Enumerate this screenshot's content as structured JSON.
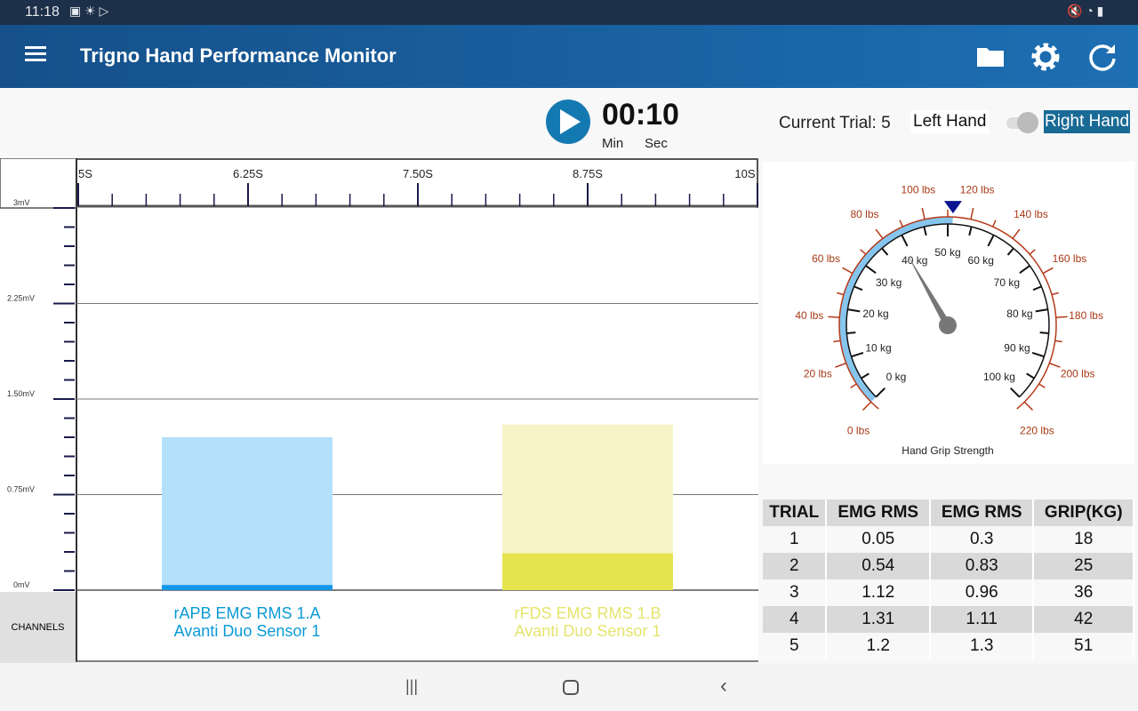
{
  "status": {
    "time": "11:18"
  },
  "header": {
    "title": "Trigno Hand Performance Monitor",
    "icons": [
      "menu-icon",
      "folder-icon",
      "gear-icon",
      "refresh-icon"
    ]
  },
  "timer": {
    "value": "00:10",
    "min_label": "Min",
    "sec_label": "Sec"
  },
  "trial": {
    "current_label": "Current Trial: 5",
    "left_hand": "Left Hand",
    "right_hand": "Right Hand",
    "selected": "Right Hand"
  },
  "chart_data": {
    "type": "bar",
    "x_ticks": [
      "5S",
      "6.25S",
      "7.50S",
      "8.75S",
      "10S"
    ],
    "y_ticks": [
      "3mV",
      "2.25mV",
      "1.50mV",
      "0.75mV",
      "0mV"
    ],
    "ylim": [
      0,
      3
    ],
    "channels_label": "CHANNELS",
    "series": [
      {
        "name": "rAPB EMG RMS 1.A",
        "sensor": "Avanti Duo Sensor 1",
        "peak": 1.2,
        "current": 0.04,
        "color": "#0a9ad6",
        "peak_color": "#b3e0fb",
        "cur_color": "#1296e8"
      },
      {
        "name": "rFDS EMG RMS 1.B",
        "sensor": "Avanti Duo Sensor 1",
        "peak": 1.3,
        "current": 0.29,
        "color": "#e6e46c",
        "peak_color": "#f6f4c8",
        "cur_color": "#e5e44f"
      }
    ]
  },
  "gauge": {
    "title": "Hand Grip Strength",
    "needle_kg": 39,
    "peak_kg": 51,
    "kg_labels": [
      "0 kg",
      "10 kg",
      "20 kg",
      "30 kg",
      "40 kg",
      "50 kg",
      "60 kg",
      "70 kg",
      "80 kg",
      "90 kg",
      "100 kg"
    ],
    "lbs_labels": [
      "0 lbs",
      "20 lbs",
      "40 lbs",
      "60 lbs",
      "80 lbs",
      "100 lbs",
      "120 lbs",
      "140 lbs",
      "160 lbs",
      "180 lbs",
      "200 lbs",
      "220 lbs"
    ]
  },
  "table": {
    "headers": [
      "TRIAL",
      "EMG RMS",
      "EMG RMS",
      "GRIP(KG)"
    ],
    "rows": [
      [
        "1",
        "0.05",
        "0.3",
        "18"
      ],
      [
        "2",
        "0.54",
        "0.83",
        "25"
      ],
      [
        "3",
        "1.12",
        "0.96",
        "36"
      ],
      [
        "4",
        "1.31",
        "1.11",
        "42"
      ],
      [
        "5",
        "1.2",
        "1.3",
        "51"
      ]
    ]
  }
}
